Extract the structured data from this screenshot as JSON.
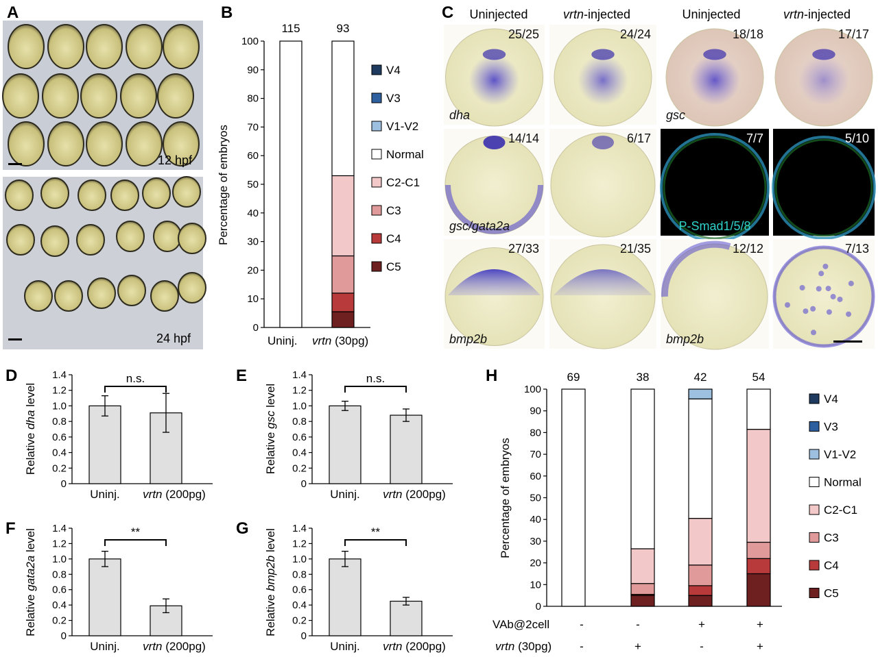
{
  "panels": {
    "A": {
      "letter": "A",
      "top_label": "12 hpf",
      "bottom_label": "24 hpf"
    },
    "B": {
      "letter": "B",
      "counts": [
        "115",
        "93"
      ],
      "ylabel": "Percentage of embryos",
      "x_labels": [
        {
          "plain": "Uninj.",
          "italic": ""
        },
        {
          "italic": "vrtn",
          "plain": " (30pg)"
        }
      ]
    },
    "C": {
      "letter": "C",
      "headers": [
        {
          "italic": "",
          "plain": "Uninjected"
        },
        {
          "italic": "vrtn",
          "plain": "-injected"
        },
        {
          "italic": "",
          "plain": "Uninjected"
        },
        {
          "italic": "vrtn",
          "plain": "-injected"
        }
      ],
      "ratios": [
        [
          "25/25",
          "24/24",
          "18/18",
          "17/17"
        ],
        [
          "14/14",
          "6/17",
          "7/7",
          "5/10"
        ],
        [
          "27/33",
          "21/35",
          "12/12",
          "7/13"
        ]
      ],
      "gene_labels": {
        "r0c0": "dha",
        "r0c2": "gsc",
        "r1c0": "gsc/gata2a",
        "r1c2": "P-Smad1/5/8",
        "r2c0": "bmp2b",
        "r2c2": "bmp2b"
      }
    },
    "D": {
      "letter": "D",
      "ylabel_plain": "Relative ",
      "ylabel_italic": "dha",
      "ylabel_tail": " level",
      "sig": "n.s."
    },
    "E": {
      "letter": "E",
      "ylabel_plain": "Relative ",
      "ylabel_italic": "gsc",
      "ylabel_tail": " level",
      "sig": "n.s."
    },
    "F": {
      "letter": "F",
      "ylabel_plain": "Relative ",
      "ylabel_italic": "gata2a",
      "ylabel_tail": " level",
      "sig": "**"
    },
    "G": {
      "letter": "G",
      "ylabel_plain": "Relative ",
      "ylabel_italic": "bmp2b",
      "ylabel_tail": " level",
      "sig": "**"
    },
    "H": {
      "letter": "H",
      "counts": [
        "69",
        "38",
        "42",
        "54"
      ],
      "ylabel": "Percentage of embryos",
      "row1_label": "VAb@2cell",
      "row1_values": [
        "-",
        "-",
        "+",
        "+"
      ],
      "row2_label_italic": "vrtn",
      "row2_label_plain": " (30pg)",
      "row2_values": [
        "-",
        "+",
        "-",
        "+"
      ]
    }
  },
  "small_bar_xlabels": {
    "uninj": "Uninj.",
    "vrtn_italic": "vrtn",
    "vrtn_plain": " (200pg)"
  },
  "colors": {
    "V4": "#1f3a5f",
    "V3": "#2e5f9e",
    "V1-V2": "#9dbfe0",
    "Normal": "#ffffff",
    "C2-C1": "#f2c8c8",
    "C3": "#e09a9a",
    "C4": "#b83a3a",
    "C5": "#6e1f1f",
    "bar_gray": "#e0e0e0"
  },
  "chart_data": [
    {
      "panel": "B",
      "type": "bar",
      "stacked": true,
      "categories": [
        "Uninj.",
        "vrtn (30pg)"
      ],
      "ylim": [
        0,
        100
      ],
      "yticks": [
        0,
        10,
        20,
        30,
        40,
        50,
        60,
        70,
        80,
        90,
        100
      ],
      "legend": [
        "V4",
        "V3",
        "V1-V2",
        "Normal",
        "C2-C1",
        "C3",
        "C4",
        "C5"
      ],
      "legend_placement": "right",
      "series": [
        {
          "name": "C5",
          "values": [
            0,
            5.5
          ]
        },
        {
          "name": "C4",
          "values": [
            0,
            6.5
          ]
        },
        {
          "name": "C3",
          "values": [
            0,
            13
          ]
        },
        {
          "name": "C2-C1",
          "values": [
            0,
            28
          ]
        },
        {
          "name": "Normal",
          "values": [
            100,
            47
          ]
        },
        {
          "name": "V1-V2",
          "values": [
            0,
            0
          ]
        },
        {
          "name": "V3",
          "values": [
            0,
            0
          ]
        },
        {
          "name": "V4",
          "values": [
            0,
            0
          ]
        }
      ]
    },
    {
      "panel": "D",
      "type": "bar",
      "categories": [
        "Uninj.",
        "vrtn (200pg)"
      ],
      "values": [
        1.0,
        0.91
      ],
      "errors": [
        0.13,
        0.25
      ],
      "ylim": [
        0,
        1.4
      ],
      "yticks": [
        0,
        0.2,
        0.4,
        0.6,
        0.8,
        1.0,
        1.2,
        1.4
      ]
    },
    {
      "panel": "E",
      "type": "bar",
      "categories": [
        "Uninj.",
        "vrtn (200pg)"
      ],
      "values": [
        1.0,
        0.88
      ],
      "errors": [
        0.06,
        0.08
      ],
      "ylim": [
        0,
        1.4
      ],
      "yticks": [
        0,
        0.2,
        0.4,
        0.6,
        0.8,
        1.0,
        1.2,
        1.4
      ]
    },
    {
      "panel": "F",
      "type": "bar",
      "categories": [
        "Uninj.",
        "vrtn (200pg)"
      ],
      "values": [
        1.0,
        0.39
      ],
      "errors": [
        0.1,
        0.09
      ],
      "ylim": [
        0,
        1.4
      ],
      "yticks": [
        0,
        0.2,
        0.4,
        0.6,
        0.8,
        1.0,
        1.2,
        1.4
      ]
    },
    {
      "panel": "G",
      "type": "bar",
      "categories": [
        "Uninj.",
        "vrtn (200pg)"
      ],
      "values": [
        1.0,
        0.45
      ],
      "errors": [
        0.1,
        0.05
      ],
      "ylim": [
        0,
        1.4
      ],
      "yticks": [
        0,
        0.2,
        0.4,
        0.6,
        0.8,
        1.0,
        1.2,
        1.4
      ]
    },
    {
      "panel": "H",
      "type": "bar",
      "stacked": true,
      "categories": [
        "-/-",
        "-/+",
        "+/-",
        "+/+"
      ],
      "ylim": [
        0,
        100
      ],
      "yticks": [
        0,
        10,
        20,
        30,
        40,
        50,
        60,
        70,
        80,
        90,
        100
      ],
      "legend": [
        "V4",
        "V3",
        "V1-V2",
        "Normal",
        "C2-C1",
        "C3",
        "C4",
        "C5"
      ],
      "legend_placement": "right",
      "series": [
        {
          "name": "C5",
          "values": [
            0,
            5,
            5,
            15
          ]
        },
        {
          "name": "C4",
          "values": [
            0,
            0.5,
            4.5,
            7
          ]
        },
        {
          "name": "C3",
          "values": [
            0,
            5,
            9.5,
            7.5
          ]
        },
        {
          "name": "C2-C1",
          "values": [
            0,
            16,
            21.5,
            52
          ]
        },
        {
          "name": "Normal",
          "values": [
            100,
            73.5,
            55,
            18.5
          ]
        },
        {
          "name": "V1-V2",
          "values": [
            0,
            0,
            4.5,
            0
          ]
        },
        {
          "name": "V3",
          "values": [
            0,
            0,
            0,
            0
          ]
        },
        {
          "name": "V4",
          "values": [
            0,
            0,
            0,
            0
          ]
        }
      ]
    }
  ]
}
